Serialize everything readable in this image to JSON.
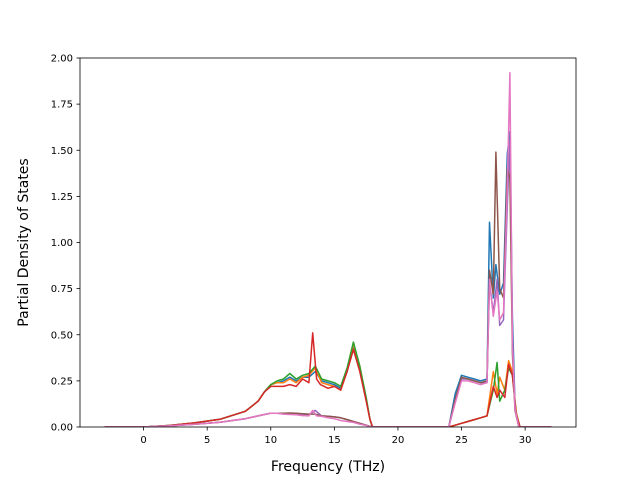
{
  "chart_data": {
    "type": "line",
    "title": "",
    "xlabel": "Frequency (THz)",
    "ylabel": "Partial Density of States",
    "xlim": [
      -5.0,
      34.0
    ],
    "ylim": [
      0.0,
      2.0
    ],
    "xticks": [
      0,
      5,
      10,
      15,
      20,
      25,
      30
    ],
    "xtick_labels": [
      "0",
      "5",
      "10",
      "15",
      "20",
      "25",
      "30"
    ],
    "yticks": [
      0.0,
      0.25,
      0.5,
      0.75,
      1.0,
      1.25,
      1.5,
      1.75,
      2.0
    ],
    "ytick_labels": [
      "0.00",
      "0.25",
      "0.50",
      "0.75",
      "1.00",
      "1.25",
      "1.50",
      "1.75",
      "2.00"
    ],
    "grid": false,
    "legend": "none",
    "series": [
      {
        "color": "#1f77b4",
        "x": [
          -3,
          0,
          2,
          4,
          6,
          8,
          9,
          9.5,
          10,
          10.5,
          11,
          11.5,
          12,
          12.5,
          13,
          13.5,
          14,
          14.5,
          15,
          15.5,
          16,
          16.5,
          17,
          17.5,
          17.8,
          18,
          24,
          24.5,
          25,
          25.5,
          26,
          26.5,
          27,
          27.2,
          27.5,
          27.7,
          28,
          28.3,
          28.6,
          28.8,
          29,
          29.2,
          29.5,
          30,
          32
        ],
        "y": [
          0,
          0,
          0.008,
          0.022,
          0.042,
          0.085,
          0.14,
          0.19,
          0.23,
          0.24,
          0.25,
          0.27,
          0.25,
          0.27,
          0.27,
          0.3,
          0.25,
          0.24,
          0.23,
          0.21,
          0.3,
          0.44,
          0.32,
          0.15,
          0.04,
          0,
          0,
          0.18,
          0.28,
          0.27,
          0.26,
          0.25,
          0.26,
          1.11,
          0.7,
          0.88,
          0.72,
          0.78,
          1.48,
          1.6,
          0.6,
          0.12,
          0,
          0,
          0
        ]
      },
      {
        "color": "#ff7f0e",
        "x": [
          -3,
          0,
          2,
          4,
          6,
          8,
          9,
          9.5,
          10,
          10.5,
          11,
          11.5,
          12,
          12.5,
          13,
          13.5,
          14,
          14.5,
          15,
          15.5,
          16,
          16.5,
          17,
          17.5,
          17.8,
          18,
          24,
          24.5,
          25,
          25.5,
          26,
          26.5,
          27,
          27.5,
          27.8,
          28,
          28.4,
          28.7,
          29,
          29.3,
          29.6,
          30,
          32
        ],
        "y": [
          0,
          0,
          0.008,
          0.022,
          0.042,
          0.085,
          0.14,
          0.19,
          0.23,
          0.24,
          0.24,
          0.26,
          0.24,
          0.27,
          0.28,
          0.32,
          0.24,
          0.23,
          0.22,
          0.2,
          0.31,
          0.45,
          0.33,
          0.15,
          0.04,
          0,
          0,
          0.01,
          0.02,
          0.03,
          0.04,
          0.05,
          0.06,
          0.3,
          0.18,
          0.27,
          0.2,
          0.36,
          0.3,
          0.08,
          0,
          0,
          0
        ]
      },
      {
        "color": "#2ca02c",
        "x": [
          -3,
          0,
          2,
          4,
          6,
          8,
          9,
          9.5,
          10,
          10.5,
          11,
          11.5,
          12,
          12.5,
          13,
          13.5,
          14,
          14.5,
          15,
          15.5,
          16,
          16.5,
          17,
          17.5,
          17.8,
          18,
          24,
          24.5,
          25,
          25.5,
          26,
          26.5,
          27,
          27.5,
          27.8,
          28,
          28.4,
          28.7,
          29,
          29.3,
          29.6,
          30,
          32
        ],
        "y": [
          0,
          0,
          0.008,
          0.022,
          0.042,
          0.085,
          0.14,
          0.19,
          0.23,
          0.25,
          0.26,
          0.29,
          0.26,
          0.28,
          0.29,
          0.33,
          0.26,
          0.25,
          0.24,
          0.22,
          0.32,
          0.46,
          0.33,
          0.16,
          0.04,
          0,
          0,
          0.01,
          0.02,
          0.03,
          0.04,
          0.05,
          0.06,
          0.2,
          0.35,
          0.14,
          0.2,
          0.32,
          0.28,
          0.07,
          0,
          0,
          0
        ]
      },
      {
        "color": "#d62728",
        "x": [
          -3,
          0,
          2,
          4,
          6,
          8,
          9,
          9.5,
          10,
          10.5,
          11,
          11.5,
          12,
          12.5,
          13,
          13.3,
          13.6,
          13.9,
          14.2,
          14.5,
          15,
          15.5,
          16,
          16.5,
          17,
          17.5,
          17.8,
          18,
          24,
          24.5,
          25,
          25.5,
          26,
          26.5,
          27,
          27.5,
          27.8,
          28,
          28.4,
          28.7,
          29,
          29.3,
          29.6,
          30,
          32
        ],
        "y": [
          0,
          0,
          0.008,
          0.022,
          0.042,
          0.085,
          0.14,
          0.19,
          0.22,
          0.22,
          0.22,
          0.23,
          0.22,
          0.26,
          0.24,
          0.51,
          0.26,
          0.23,
          0.22,
          0.21,
          0.22,
          0.2,
          0.3,
          0.42,
          0.3,
          0.14,
          0.04,
          0,
          0,
          0.01,
          0.02,
          0.03,
          0.04,
          0.05,
          0.06,
          0.22,
          0.16,
          0.2,
          0.16,
          0.34,
          0.28,
          0.07,
          0,
          0,
          0
        ]
      },
      {
        "color": "#9467bd",
        "x": [
          -3,
          0,
          2,
          4,
          6,
          8,
          9,
          9.5,
          10,
          10.5,
          11,
          11.5,
          12,
          12.5,
          13,
          13.5,
          14,
          14.5,
          15,
          15.5,
          16,
          16.5,
          17,
          17.5,
          17.8,
          18,
          24,
          24.5,
          25,
          25.5,
          26,
          26.5,
          27,
          27.2,
          27.5,
          27.8,
          28,
          28.3,
          28.6,
          28.8,
          29,
          29.2,
          29.5,
          30,
          32
        ],
        "y": [
          0,
          0,
          0.006,
          0.015,
          0.026,
          0.045,
          0.06,
          0.068,
          0.075,
          0.075,
          0.072,
          0.074,
          0.072,
          0.07,
          0.068,
          0.09,
          0.06,
          0.058,
          0.055,
          0.05,
          0.04,
          0.03,
          0.02,
          0.01,
          0.003,
          0,
          0,
          0.14,
          0.26,
          0.26,
          0.25,
          0.24,
          0.24,
          0.78,
          0.62,
          0.8,
          0.55,
          0.58,
          1.2,
          1.55,
          0.5,
          0.1,
          0,
          0,
          0
        ]
      },
      {
        "color": "#8c564b",
        "x": [
          -3,
          0,
          2,
          4,
          6,
          8,
          9,
          9.5,
          10,
          10.5,
          11,
          11.5,
          12,
          12.5,
          13,
          13.5,
          14,
          14.5,
          15,
          15.5,
          16,
          16.5,
          17,
          17.5,
          17.8,
          18,
          24,
          24.5,
          25,
          25.5,
          26,
          26.5,
          27,
          27.2,
          27.5,
          27.7,
          28,
          28.3,
          28.6,
          28.8,
          29,
          29.2,
          29.5,
          30,
          32
        ],
        "y": [
          0,
          0,
          0.006,
          0.015,
          0.026,
          0.045,
          0.06,
          0.068,
          0.075,
          0.075,
          0.075,
          0.076,
          0.074,
          0.072,
          0.07,
          0.07,
          0.06,
          0.058,
          0.055,
          0.05,
          0.04,
          0.03,
          0.02,
          0.01,
          0.003,
          0,
          0,
          0.15,
          0.27,
          0.26,
          0.25,
          0.24,
          0.25,
          0.85,
          0.72,
          1.49,
          0.75,
          0.7,
          1.4,
          1.35,
          0.4,
          0.09,
          0,
          0,
          0
        ]
      },
      {
        "color": "#e377c2",
        "x": [
          -3,
          0,
          2,
          4,
          6,
          8,
          9,
          9.5,
          10,
          10.5,
          11,
          11.5,
          12,
          12.5,
          13,
          13.3,
          13.6,
          13.9,
          14.2,
          14.5,
          15,
          15.5,
          16,
          16.5,
          17,
          17.5,
          17.8,
          18,
          24,
          24.5,
          25,
          25.5,
          26,
          26.5,
          27,
          27.2,
          27.5,
          27.8,
          28,
          28.3,
          28.6,
          28.8,
          29,
          29.2,
          29.5,
          30,
          32
        ],
        "y": [
          0,
          0,
          0.006,
          0.015,
          0.026,
          0.045,
          0.06,
          0.068,
          0.075,
          0.075,
          0.07,
          0.068,
          0.066,
          0.062,
          0.06,
          0.09,
          0.06,
          0.058,
          0.055,
          0.05,
          0.045,
          0.035,
          0.03,
          0.025,
          0.015,
          0.008,
          0.002,
          0,
          0,
          0.13,
          0.25,
          0.25,
          0.24,
          0.23,
          0.24,
          0.8,
          0.6,
          0.74,
          0.58,
          0.62,
          1.3,
          1.92,
          0.45,
          0.1,
          0,
          0,
          0
        ]
      }
    ]
  }
}
